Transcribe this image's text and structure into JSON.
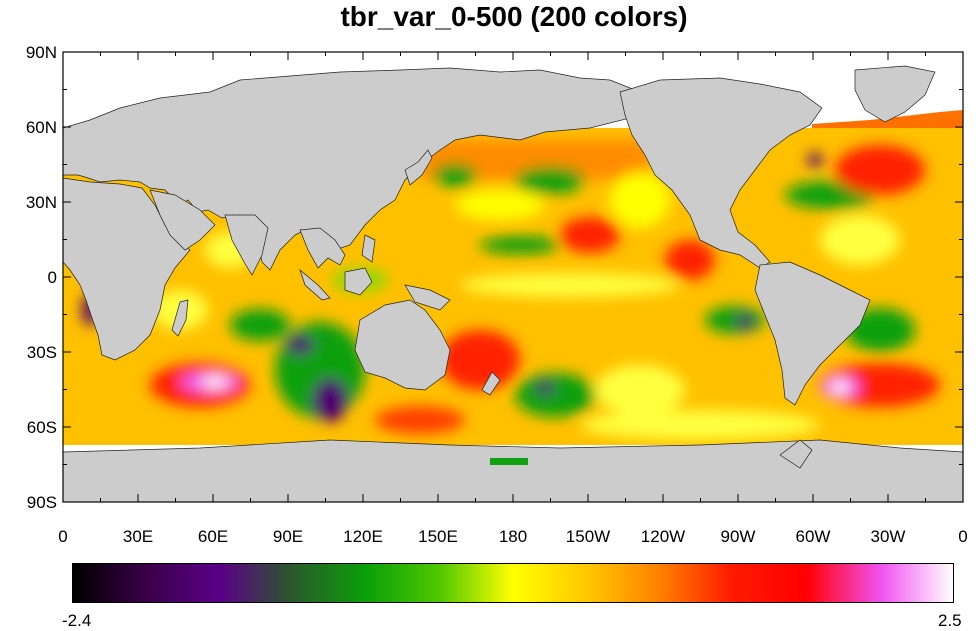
{
  "title": "tbr_var_0-500 (200 colors)",
  "map": {
    "projection": "cylindrical-equidistant",
    "lon_range": [
      0,
      360
    ],
    "lat_range": [
      -90,
      90
    ],
    "land_color": "#cccccc",
    "missing_color": "#ffffff",
    "lat_ticks": [
      {
        "value": 90,
        "label": "90N"
      },
      {
        "value": 60,
        "label": "60N"
      },
      {
        "value": 30,
        "label": "30N"
      },
      {
        "value": 0,
        "label": "0"
      },
      {
        "value": -30,
        "label": "30S"
      },
      {
        "value": -60,
        "label": "60S"
      },
      {
        "value": -90,
        "label": "90S"
      }
    ],
    "lon_ticks": [
      {
        "value": 0,
        "label": "0"
      },
      {
        "value": 30,
        "label": "30E"
      },
      {
        "value": 60,
        "label": "60E"
      },
      {
        "value": 90,
        "label": "90E"
      },
      {
        "value": 120,
        "label": "120E"
      },
      {
        "value": 150,
        "label": "150E"
      },
      {
        "value": 180,
        "label": "180"
      },
      {
        "value": 210,
        "label": "150W"
      },
      {
        "value": 240,
        "label": "120W"
      },
      {
        "value": 270,
        "label": "90W"
      },
      {
        "value": 300,
        "label": "60W"
      },
      {
        "value": 330,
        "label": "30W"
      },
      {
        "value": 360,
        "label": "0"
      }
    ]
  },
  "colorbar": {
    "min_label": "-2.4",
    "max_label": "2.5",
    "min": -2.4,
    "max": 2.5,
    "colors": [
      "#000000",
      "#3a0048",
      "#5a0088",
      "#2a5a2a",
      "#0aa00a",
      "#50c800",
      "#ffff00",
      "#ffc800",
      "#ff8000",
      "#ff1a00",
      "#ff0000",
      "#f050f0",
      "#ffffff"
    ]
  }
}
